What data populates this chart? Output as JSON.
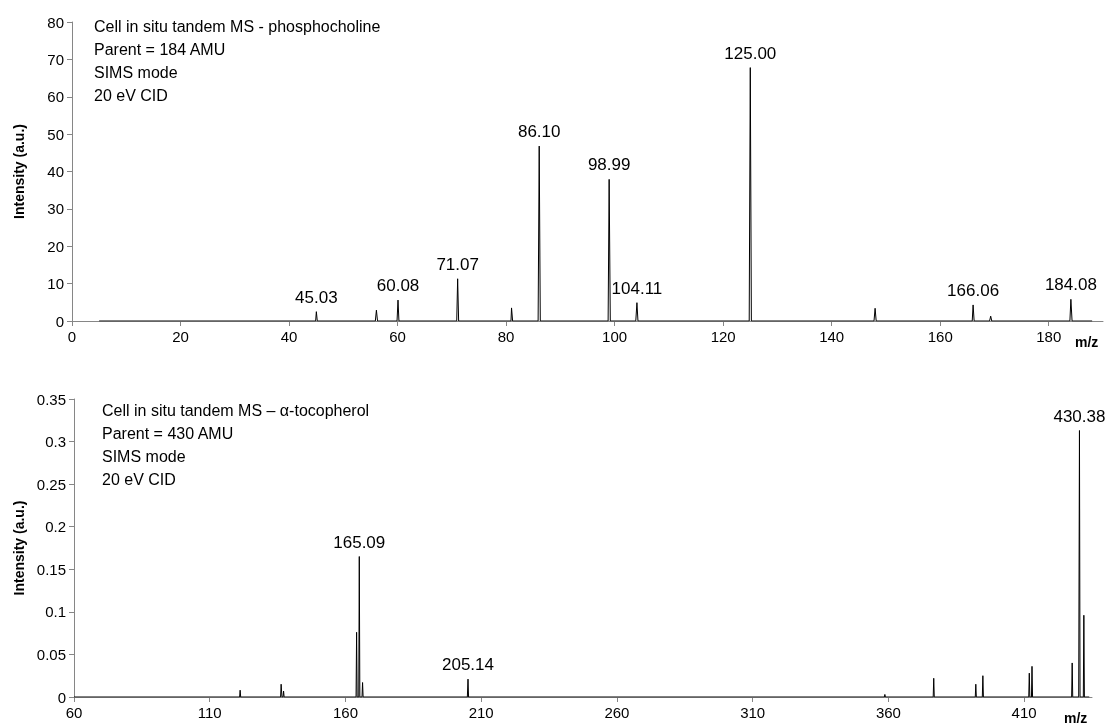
{
  "chart_data": [
    {
      "type": "line",
      "xlabel": "m/z",
      "ylabel": "Intensity (a.u.)",
      "annotations": [
        "Cell in situ tandem MS - phosphocholine",
        "Parent = 184 AMU",
        "SIMS mode",
        "20 eV CID",
        {
          "text": "45.03",
          "x": 45.03,
          "y": 2.5
        },
        {
          "text": "60.08",
          "x": 60.08,
          "y": 5.6
        },
        {
          "text": "71.07",
          "x": 71.07,
          "y": 11.3
        },
        {
          "text": "86.10",
          "x": 86.1,
          "y": 46.8
        },
        {
          "text": "98.99",
          "x": 98.99,
          "y": 37.9
        },
        {
          "text": "104.11",
          "x": 104.11,
          "y": 4.9
        },
        {
          "text": "125.00",
          "x": 125.0,
          "y": 67.8
        },
        {
          "text": "166.06",
          "x": 166.06,
          "y": 4.3
        },
        {
          "text": "184.08",
          "x": 184.08,
          "y": 5.8
        }
      ],
      "x": [
        5,
        44.9,
        45.03,
        45.2,
        55.9,
        56.1,
        56.3,
        59.9,
        60.08,
        60.25,
        70.9,
        71.07,
        71.25,
        80.9,
        81.0,
        81.2,
        85.9,
        86.1,
        86.3,
        98.8,
        98.99,
        99.2,
        103.9,
        104.11,
        104.3,
        124.8,
        125.0,
        125.2,
        147.8,
        148.0,
        148.2,
        165.9,
        166.06,
        166.25,
        169.1,
        169.3,
        169.5,
        183.9,
        184.08,
        184.3,
        188
      ],
      "series": [
        {
          "color": "#000000",
          "values": [
            0,
            0,
            2.5,
            0,
            0,
            2.9,
            0,
            0,
            5.6,
            0,
            0,
            11.3,
            0,
            0,
            3.5,
            0,
            0,
            46.8,
            0,
            0,
            37.9,
            0,
            0,
            4.9,
            0,
            0,
            67.8,
            0,
            0,
            3.4,
            0,
            0,
            4.3,
            0,
            0,
            1.3,
            0,
            0,
            5.8,
            0,
            0
          ]
        }
      ],
      "xlim": [
        0,
        190
      ],
      "xticks": [
        0,
        20,
        40,
        60,
        80,
        100,
        120,
        140,
        160,
        180
      ],
      "ylim": [
        0,
        80
      ],
      "yticks": [
        0,
        10,
        20,
        30,
        40,
        50,
        60,
        70,
        80
      ],
      "grid": false,
      "marker": "none",
      "line_style": "solid"
    },
    {
      "type": "line",
      "xlabel": "m/z",
      "ylabel": "Intensity (a.u.)",
      "annotations": [
        "Cell in situ tandem MS – α-tocopherol",
        "Parent = 430 AMU",
        "SIMS mode",
        "20 eV CID",
        {
          "text": "165.09",
          "x": 165.09,
          "y": 0.165
        },
        {
          "text": "205.14",
          "x": 205.14,
          "y": 0.021
        },
        {
          "text": "430.38",
          "x": 430.38,
          "y": 0.313
        }
      ],
      "x": [
        60,
        121.0,
        121.2,
        121.4,
        136.1,
        136.3,
        136.6,
        137.0,
        137.2,
        137.4,
        163.9,
        164.1,
        164.3,
        164.9,
        165.09,
        165.3,
        166.1,
        166.3,
        166.5,
        204.9,
        205.14,
        205.35,
        358.5,
        358.7,
        358.9,
        376.5,
        376.7,
        376.9,
        392.0,
        392.2,
        392.4,
        394.6,
        394.8,
        395.0,
        411.7,
        411.9,
        412.1,
        412.7,
        412.9,
        413.1,
        427.5,
        427.7,
        427.9,
        430.1,
        430.38,
        430.6,
        431.8,
        432.0,
        432.2,
        434
      ],
      "series": [
        {
          "color": "#000000",
          "values": [
            0,
            0,
            0.008,
            0,
            0,
            0.015,
            0,
            0,
            0.007,
            0,
            0,
            0.076,
            0,
            0,
            0.165,
            0,
            0,
            0.017,
            0,
            0,
            0.021,
            0,
            0,
            0.003,
            0,
            0,
            0.022,
            0,
            0,
            0.015,
            0,
            0,
            0.025,
            0,
            0,
            0.028,
            0,
            0,
            0.036,
            0,
            0,
            0.04,
            0,
            0,
            0.313,
            0,
            0,
            0.096,
            0,
            0
          ]
        }
      ],
      "xlim": [
        60,
        435
      ],
      "xticks": [
        60,
        110,
        160,
        210,
        260,
        310,
        360,
        410
      ],
      "ylim": [
        0,
        0.35
      ],
      "yticks": [
        0,
        0.05,
        0.1,
        0.15,
        0.2,
        0.25,
        0.3,
        0.35
      ],
      "grid": false,
      "marker": "none",
      "line_style": "solid"
    }
  ]
}
